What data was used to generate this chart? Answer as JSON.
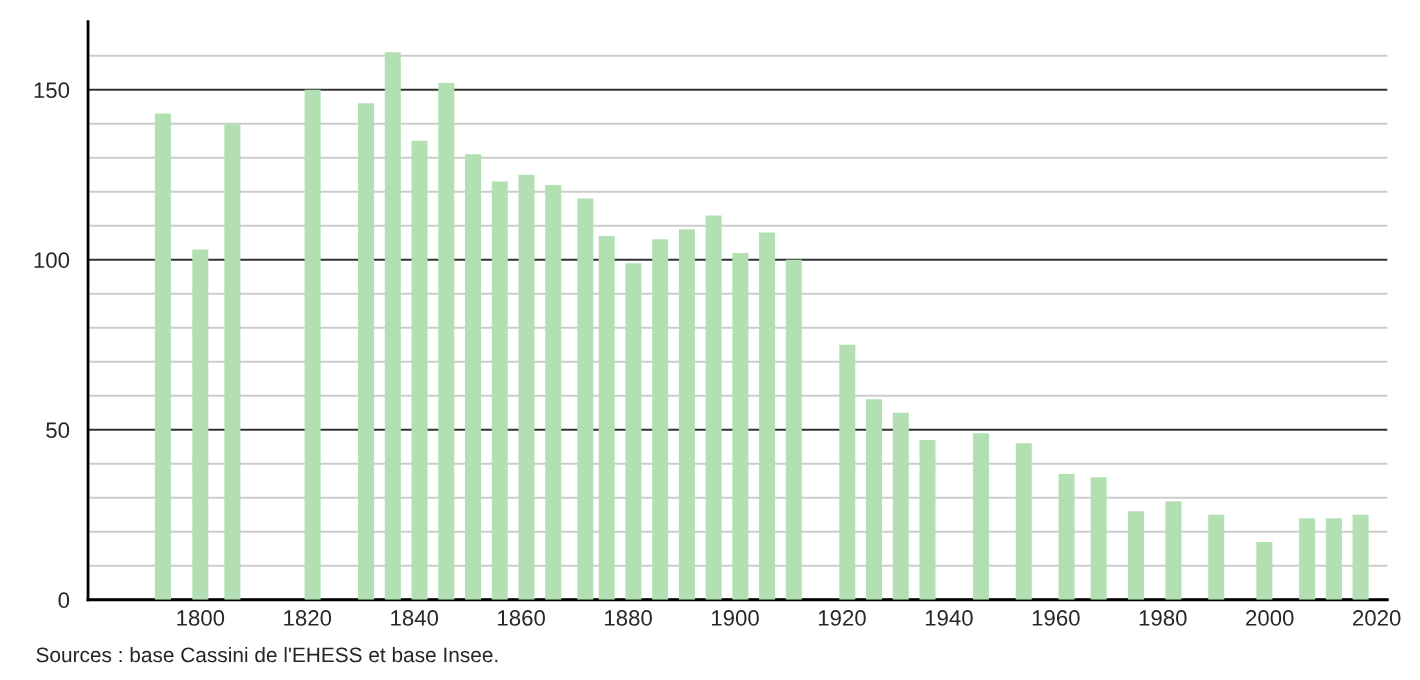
{
  "chart_data": {
    "type": "bar",
    "x": [
      1793,
      1800,
      1806,
      1821,
      1831,
      1836,
      1841,
      1846,
      1851,
      1856,
      1861,
      1866,
      1872,
      1876,
      1881,
      1886,
      1891,
      1896,
      1901,
      1906,
      1911,
      1921,
      1926,
      1931,
      1936,
      1946,
      1954,
      1962,
      1968,
      1975,
      1982,
      1990,
      1999,
      2007,
      2012,
      2017
    ],
    "values": [
      143,
      103,
      140,
      150,
      146,
      161,
      135,
      152,
      131,
      123,
      125,
      122,
      118,
      107,
      99,
      106,
      109,
      113,
      102,
      108,
      100,
      75,
      59,
      55,
      47,
      49,
      46,
      37,
      36,
      26,
      29,
      25,
      17,
      24,
      24,
      25
    ],
    "color": "#b3e0b3",
    "xlim": [
      1779,
      2022
    ],
    "xticks": [
      1800,
      1820,
      1840,
      1860,
      1880,
      1900,
      1920,
      1940,
      1960,
      1980,
      2000,
      2020
    ],
    "ylim": [
      0,
      170
    ],
    "yticks": [
      0,
      {
        "value": 10,
        "label": null
      },
      {
        "value": 20,
        "label": null
      },
      {
        "value": 30,
        "label": null
      },
      {
        "value": 40,
        "label": null
      },
      50,
      {
        "value": 60,
        "label": null
      },
      {
        "value": 70,
        "label": null
      },
      {
        "value": 80,
        "label": null
      },
      {
        "value": 90,
        "label": null
      },
      100,
      {
        "value": 110,
        "label": null
      },
      {
        "value": 120,
        "label": null
      },
      {
        "value": 130,
        "label": null
      },
      {
        "value": 140,
        "label": null
      },
      150,
      {
        "value": 160,
        "label": null
      }
    ],
    "grid": "y",
    "annotations": [
      "Sources : base Cassini de l'EHESS et base Insee."
    ]
  }
}
